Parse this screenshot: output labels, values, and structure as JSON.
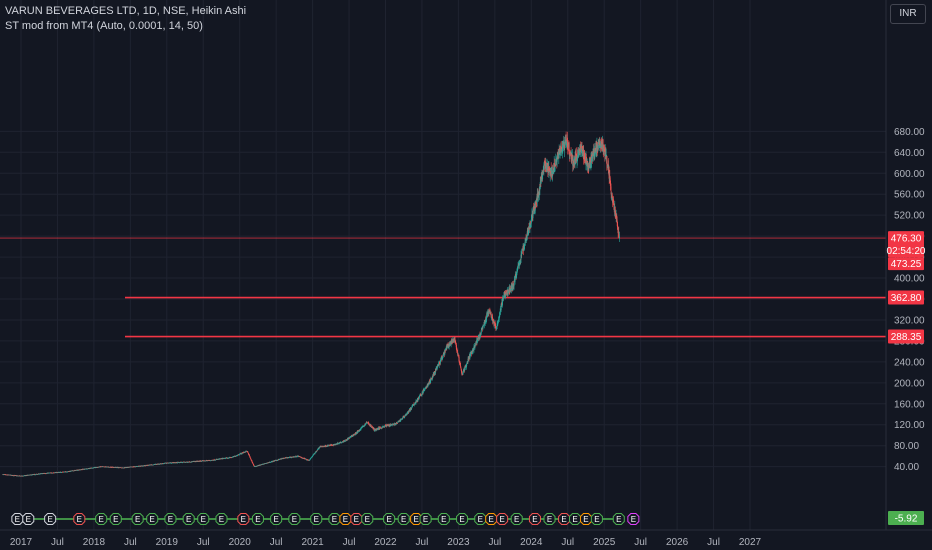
{
  "header": {
    "symbol_line": "VARUN BEVERAGES LTD, 1D, NSE, Heikin Ashi",
    "indicator_line": "ST mod from MT4 (Auto, 0.0001, 14, 50)",
    "currency": "INR"
  },
  "colors": {
    "background": "#131722",
    "grid": "#1f2330",
    "up": "#26a69a",
    "down": "#ef5350",
    "level_line": "#f23645",
    "price_tag": "#f23645",
    "indicator_tag": "#4caf50",
    "earnings_green": "#4caf50",
    "earnings_red": "#ef5350",
    "earnings_orange": "#ff9800",
    "earnings_purple": "#e040fb"
  },
  "chart_data": {
    "type": "candlestick",
    "ylim": [
      0,
      700
    ],
    "y_ticks": [
      "40.00",
      "80.00",
      "120.00",
      "160.00",
      "200.00",
      "240.00",
      "280.00",
      "320.00",
      "360.00",
      "400.00",
      "440.00",
      "480.00",
      "520.00",
      "560.00",
      "600.00",
      "640.00",
      "680.00"
    ],
    "x_ticks": [
      {
        "label": "2017",
        "t": 2017.0
      },
      {
        "label": "Jul",
        "t": 2017.5
      },
      {
        "label": "2018",
        "t": 2018.0
      },
      {
        "label": "Jul",
        "t": 2018.5
      },
      {
        "label": "2019",
        "t": 2019.0
      },
      {
        "label": "Jul",
        "t": 2019.5
      },
      {
        "label": "2020",
        "t": 2020.0
      },
      {
        "label": "Jul",
        "t": 2020.5
      },
      {
        "label": "2021",
        "t": 2021.0
      },
      {
        "label": "Jul",
        "t": 2021.5
      },
      {
        "label": "2022",
        "t": 2022.0
      },
      {
        "label": "Jul",
        "t": 2022.5
      },
      {
        "label": "2023",
        "t": 2023.0
      },
      {
        "label": "Jul",
        "t": 2023.5
      },
      {
        "label": "2024",
        "t": 2024.0
      },
      {
        "label": "Jul",
        "t": 2024.5
      },
      {
        "label": "2025",
        "t": 2025.0
      },
      {
        "label": "Jul",
        "t": 2025.5
      },
      {
        "label": "2026",
        "t": 2026.0
      },
      {
        "label": "Jul",
        "t": 2026.5
      },
      {
        "label": "2027",
        "t": 2027.0
      }
    ],
    "price_path": [
      [
        2016.75,
        25
      ],
      [
        2017.0,
        22
      ],
      [
        2017.3,
        27
      ],
      [
        2017.6,
        30
      ],
      [
        2017.9,
        36
      ],
      [
        2018.1,
        40
      ],
      [
        2018.4,
        38
      ],
      [
        2018.7,
        42
      ],
      [
        2019.0,
        47
      ],
      [
        2019.3,
        49
      ],
      [
        2019.6,
        52
      ],
      [
        2019.9,
        58
      ],
      [
        2020.1,
        70
      ],
      [
        2020.2,
        40
      ],
      [
        2020.4,
        48
      ],
      [
        2020.6,
        56
      ],
      [
        2020.8,
        60
      ],
      [
        2020.95,
        52
      ],
      [
        2021.1,
        78
      ],
      [
        2021.3,
        82
      ],
      [
        2021.45,
        90
      ],
      [
        2021.6,
        104
      ],
      [
        2021.75,
        125
      ],
      [
        2021.85,
        110
      ],
      [
        2022.0,
        118
      ],
      [
        2022.15,
        122
      ],
      [
        2022.3,
        142
      ],
      [
        2022.45,
        170
      ],
      [
        2022.6,
        200
      ],
      [
        2022.75,
        240
      ],
      [
        2022.85,
        270
      ],
      [
        2022.95,
        283
      ],
      [
        2023.05,
        215
      ],
      [
        2023.15,
        250
      ],
      [
        2023.3,
        292
      ],
      [
        2023.42,
        338
      ],
      [
        2023.52,
        303
      ],
      [
        2023.62,
        366
      ],
      [
        2023.75,
        385
      ],
      [
        2023.88,
        452
      ],
      [
        2023.98,
        502
      ],
      [
        2024.08,
        552
      ],
      [
        2024.18,
        616
      ],
      [
        2024.28,
        600
      ],
      [
        2024.38,
        642
      ],
      [
        2024.48,
        662
      ],
      [
        2024.58,
        618
      ],
      [
        2024.68,
        650
      ],
      [
        2024.78,
        612
      ],
      [
        2024.88,
        648
      ],
      [
        2024.98,
        656
      ],
      [
        2025.05,
        618
      ],
      [
        2025.1,
        560
      ],
      [
        2025.16,
        520
      ],
      [
        2025.21,
        476.3
      ]
    ],
    "levels": [
      {
        "value": 476.3,
        "label": "476.30",
        "line": "thin"
      },
      {
        "value": 362.8,
        "label": "362.80",
        "line": "thick"
      },
      {
        "value": 288.35,
        "label": "288.35",
        "line": "thick"
      }
    ],
    "price_tags": {
      "last_price": "476.30",
      "countdown": "02:54:20",
      "secondary": "473.25"
    },
    "indicator_value": "-5.92",
    "earnings_markers": [
      {
        "t": 2016.95,
        "c": "white"
      },
      {
        "t": 2017.1,
        "c": "white"
      },
      {
        "t": 2017.4,
        "c": "white"
      },
      {
        "t": 2017.8,
        "c": "red"
      },
      {
        "t": 2018.1,
        "c": "green"
      },
      {
        "t": 2018.3,
        "c": "green"
      },
      {
        "t": 2018.6,
        "c": "green"
      },
      {
        "t": 2018.8,
        "c": "green"
      },
      {
        "t": 2019.05,
        "c": "green"
      },
      {
        "t": 2019.3,
        "c": "green"
      },
      {
        "t": 2019.5,
        "c": "green"
      },
      {
        "t": 2019.75,
        "c": "green"
      },
      {
        "t": 2020.05,
        "c": "red"
      },
      {
        "t": 2020.25,
        "c": "green"
      },
      {
        "t": 2020.5,
        "c": "green"
      },
      {
        "t": 2020.75,
        "c": "green"
      },
      {
        "t": 2021.05,
        "c": "green"
      },
      {
        "t": 2021.3,
        "c": "green"
      },
      {
        "t": 2021.45,
        "c": "orange"
      },
      {
        "t": 2021.6,
        "c": "red"
      },
      {
        "t": 2021.75,
        "c": "green"
      },
      {
        "t": 2022.05,
        "c": "green"
      },
      {
        "t": 2022.25,
        "c": "green"
      },
      {
        "t": 2022.42,
        "c": "orange"
      },
      {
        "t": 2022.55,
        "c": "green"
      },
      {
        "t": 2022.8,
        "c": "green"
      },
      {
        "t": 2023.05,
        "c": "green"
      },
      {
        "t": 2023.3,
        "c": "green"
      },
      {
        "t": 2023.45,
        "c": "orange"
      },
      {
        "t": 2023.6,
        "c": "red"
      },
      {
        "t": 2023.8,
        "c": "green"
      },
      {
        "t": 2024.05,
        "c": "red"
      },
      {
        "t": 2024.25,
        "c": "green"
      },
      {
        "t": 2024.45,
        "c": "red"
      },
      {
        "t": 2024.6,
        "c": "green"
      },
      {
        "t": 2024.75,
        "c": "orange"
      },
      {
        "t": 2024.9,
        "c": "green"
      },
      {
        "t": 2025.2,
        "c": "green"
      },
      {
        "t": 2025.4,
        "c": "purple"
      }
    ],
    "earnings_letter": "E"
  }
}
